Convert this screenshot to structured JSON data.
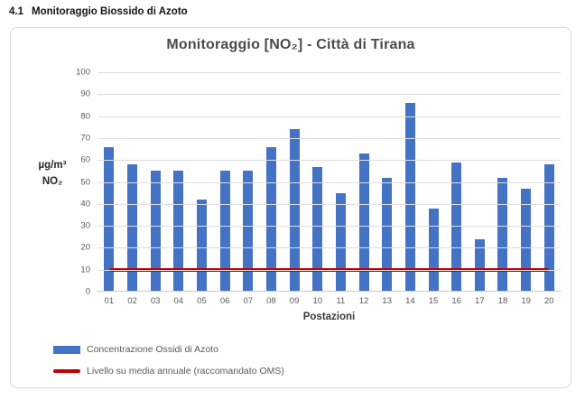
{
  "heading": {
    "number": "4.1",
    "title": "Monitoraggio Biossido di Azoto"
  },
  "chart_data": {
    "type": "bar",
    "title": "Monitoraggio [NO₂] - Città di Tirana",
    "xlabel": "Postazioni",
    "ylabel_lines": [
      "µg/m³",
      "NO₂"
    ],
    "ylim": [
      0,
      100
    ],
    "yticks": [
      0,
      10,
      20,
      30,
      40,
      50,
      60,
      70,
      80,
      90,
      100
    ],
    "categories": [
      "01",
      "02",
      "03",
      "04",
      "05",
      "06",
      "07",
      "08",
      "09",
      "10",
      "11",
      "12",
      "13",
      "14",
      "15",
      "16",
      "17",
      "18",
      "19",
      "20"
    ],
    "values": [
      66,
      58,
      55,
      55,
      42,
      55,
      55,
      66,
      74,
      57,
      45,
      63,
      52,
      86,
      38,
      59,
      24,
      52,
      47,
      58
    ],
    "threshold": {
      "value": 10,
      "label": "Livello su media annuale (raccomandato OMS)"
    },
    "legend": [
      {
        "label": "Concentrazione Ossidi di Azoto",
        "marker": "bar"
      },
      {
        "label": "Livello su media annuale (raccomandato OMS)",
        "marker": "line"
      }
    ],
    "legend_position": "bottom-left",
    "grid": true,
    "colors": {
      "bar": "#4472C4",
      "threshold": "#C00000",
      "gridline": "#DDDDDD",
      "title_text": "#4A4A4A",
      "tick_text": "#595959"
    }
  }
}
